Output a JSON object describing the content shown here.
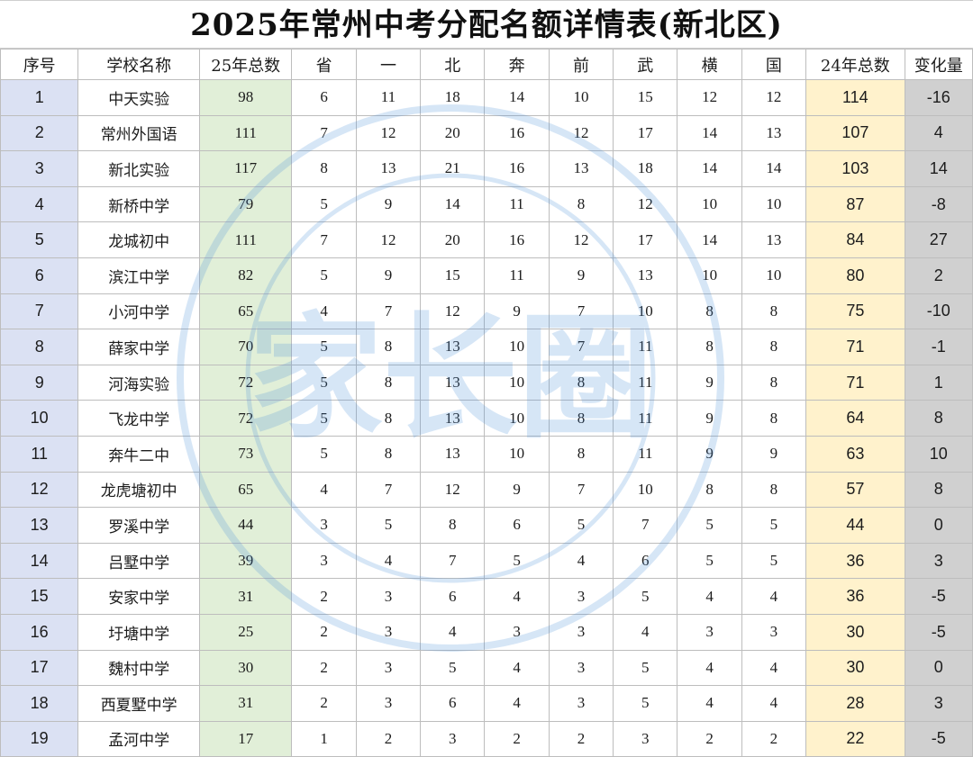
{
  "title": "2025年常州中考分配名额详情表(新北区)",
  "columns": [
    "序号",
    "学校名称",
    "25年总数",
    "省",
    "一",
    "北",
    "奔",
    "前",
    "武",
    "横",
    "国",
    "24年总数",
    "变化量"
  ],
  "rows": [
    {
      "idx": "1",
      "name": "中天实验",
      "t25": "98",
      "d": [
        "6",
        "11",
        "18",
        "14",
        "10",
        "15",
        "12",
        "12"
      ],
      "t24": "114",
      "chg": "-16"
    },
    {
      "idx": "2",
      "name": "常州外国语",
      "t25": "111",
      "d": [
        "7",
        "12",
        "20",
        "16",
        "12",
        "17",
        "14",
        "13"
      ],
      "t24": "107",
      "chg": "4"
    },
    {
      "idx": "3",
      "name": "新北实验",
      "t25": "117",
      "d": [
        "8",
        "13",
        "21",
        "16",
        "13",
        "18",
        "14",
        "14"
      ],
      "t24": "103",
      "chg": "14"
    },
    {
      "idx": "4",
      "name": "新桥中学",
      "t25": "79",
      "d": [
        "5",
        "9",
        "14",
        "11",
        "8",
        "12",
        "10",
        "10"
      ],
      "t24": "87",
      "chg": "-8"
    },
    {
      "idx": "5",
      "name": "龙城初中",
      "t25": "111",
      "d": [
        "7",
        "12",
        "20",
        "16",
        "12",
        "17",
        "14",
        "13"
      ],
      "t24": "84",
      "chg": "27"
    },
    {
      "idx": "6",
      "name": "滨江中学",
      "t25": "82",
      "d": [
        "5",
        "9",
        "15",
        "11",
        "9",
        "13",
        "10",
        "10"
      ],
      "t24": "80",
      "chg": "2"
    },
    {
      "idx": "7",
      "name": "小河中学",
      "t25": "65",
      "d": [
        "4",
        "7",
        "12",
        "9",
        "7",
        "10",
        "8",
        "8"
      ],
      "t24": "75",
      "chg": "-10"
    },
    {
      "idx": "8",
      "name": "薛家中学",
      "t25": "70",
      "d": [
        "5",
        "8",
        "13",
        "10",
        "7",
        "11",
        "8",
        "8"
      ],
      "t24": "71",
      "chg": "-1"
    },
    {
      "idx": "9",
      "name": "河海实验",
      "t25": "72",
      "d": [
        "5",
        "8",
        "13",
        "10",
        "8",
        "11",
        "9",
        "8"
      ],
      "t24": "71",
      "chg": "1"
    },
    {
      "idx": "10",
      "name": "飞龙中学",
      "t25": "72",
      "d": [
        "5",
        "8",
        "13",
        "10",
        "8",
        "11",
        "9",
        "8"
      ],
      "t24": "64",
      "chg": "8"
    },
    {
      "idx": "11",
      "name": "奔牛二中",
      "t25": "73",
      "d": [
        "5",
        "8",
        "13",
        "10",
        "8",
        "11",
        "9",
        "9"
      ],
      "t24": "63",
      "chg": "10"
    },
    {
      "idx": "12",
      "name": "龙虎塘初中",
      "t25": "65",
      "d": [
        "4",
        "7",
        "12",
        "9",
        "7",
        "10",
        "8",
        "8"
      ],
      "t24": "57",
      "chg": "8"
    },
    {
      "idx": "13",
      "name": "罗溪中学",
      "t25": "44",
      "d": [
        "3",
        "5",
        "8",
        "6",
        "5",
        "7",
        "5",
        "5"
      ],
      "t24": "44",
      "chg": "0"
    },
    {
      "idx": "14",
      "name": "吕墅中学",
      "t25": "39",
      "d": [
        "3",
        "4",
        "7",
        "5",
        "4",
        "6",
        "5",
        "5"
      ],
      "t24": "36",
      "chg": "3"
    },
    {
      "idx": "15",
      "name": "安家中学",
      "t25": "31",
      "d": [
        "2",
        "3",
        "6",
        "4",
        "3",
        "5",
        "4",
        "4"
      ],
      "t24": "36",
      "chg": "-5"
    },
    {
      "idx": "16",
      "name": "圩塘中学",
      "t25": "25",
      "d": [
        "2",
        "3",
        "4",
        "3",
        "3",
        "4",
        "3",
        "3"
      ],
      "t24": "30",
      "chg": "-5"
    },
    {
      "idx": "17",
      "name": "魏村中学",
      "t25": "30",
      "d": [
        "2",
        "3",
        "5",
        "4",
        "3",
        "5",
        "4",
        "4"
      ],
      "t24": "30",
      "chg": "0"
    },
    {
      "idx": "18",
      "name": "西夏墅中学",
      "t25": "31",
      "d": [
        "2",
        "3",
        "6",
        "4",
        "3",
        "5",
        "4",
        "4"
      ],
      "t24": "28",
      "chg": "3"
    },
    {
      "idx": "19",
      "name": "孟河中学",
      "t25": "17",
      "d": [
        "1",
        "2",
        "3",
        "2",
        "2",
        "3",
        "2",
        "2"
      ],
      "t24": "22",
      "chg": "-5"
    }
  ],
  "watermark": {
    "text": "家长圈",
    "icon": "seal-watermark"
  },
  "colors": {
    "index_column": "#dbe1f3",
    "total_2025_column": "#e1efd8",
    "total_2024_column": "#fff2cc",
    "change_column": "#d0d0d0",
    "watermark": "#4a90d9"
  }
}
